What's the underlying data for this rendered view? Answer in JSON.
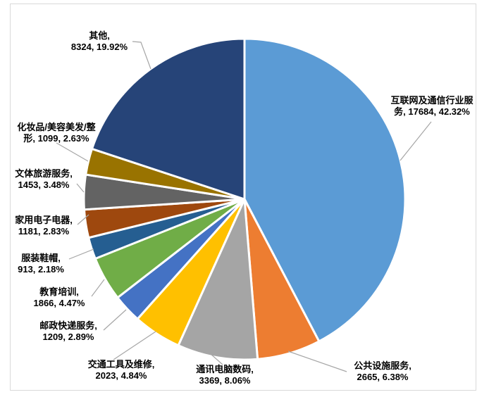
{
  "chart_data": {
    "type": "pie",
    "title": "",
    "start_angle_deg": 0,
    "direction": "clockwise",
    "legend": "none",
    "data_labels": "outside-end with leader lines, format: name, value, percent",
    "slices": [
      {
        "label": "互联网及通信行业服务",
        "value": 17684,
        "pct": 42.32,
        "color": "#5B9BD5",
        "label_line1": "互联网及通信行业服",
        "label_line2": "务, 17684, 42.32%"
      },
      {
        "label": "公共设施服务",
        "value": 2665,
        "pct": 6.38,
        "color": "#ED7D31",
        "label_line1": "公共设施服务,",
        "label_line2": "2665, 6.38%"
      },
      {
        "label": "通讯电脑数码",
        "value": 3369,
        "pct": 8.06,
        "color": "#A5A5A5",
        "label_line1": "通讯电脑数码,",
        "label_line2": "3369, 8.06%"
      },
      {
        "label": "交通工具及维修",
        "value": 2023,
        "pct": 4.84,
        "color": "#FFC000",
        "label_line1": "交通工具及维修,",
        "label_line2": "2023, 4.84%"
      },
      {
        "label": "邮政快递服务",
        "value": 1209,
        "pct": 2.89,
        "color": "#4472C4",
        "label_line1": "邮政快递服务,",
        "label_line2": "1209, 2.89%"
      },
      {
        "label": "教育培训",
        "value": 1866,
        "pct": 4.47,
        "color": "#70AD47",
        "label_line1": "教育培训,",
        "label_line2": "1866, 4.47%"
      },
      {
        "label": "服装鞋帽",
        "value": 913,
        "pct": 2.18,
        "color": "#255E91",
        "label_line1": "服装鞋帽,",
        "label_line2": "913, 2.18%"
      },
      {
        "label": "家用电子电器",
        "value": 1181,
        "pct": 2.83,
        "color": "#9E480E",
        "label_line1": "家用电子电器,",
        "label_line2": "1181, 2.83%"
      },
      {
        "label": "文体旅游服务",
        "value": 1453,
        "pct": 3.48,
        "color": "#636363",
        "label_line1": "文体旅游服务,",
        "label_line2": "1453, 3.48%"
      },
      {
        "label": "化妆品/美容美发/整形",
        "value": 1099,
        "pct": 2.63,
        "color": "#997300",
        "label_line1": "化妆品/美容美发/整",
        "label_line2": "形, 1099, 2.63%"
      },
      {
        "label": "其他",
        "value": 8324,
        "pct": 19.92,
        "color": "#264478",
        "label_line1": "其他,",
        "label_line2": "8324, 19.92%"
      }
    ]
  },
  "colors": {
    "background": "#FFFFFF",
    "chart_border": "#D9D9D9",
    "leader_line": "#A6A6A6",
    "slice_separator": "#FFFFFF",
    "label_text": "#000000"
  }
}
